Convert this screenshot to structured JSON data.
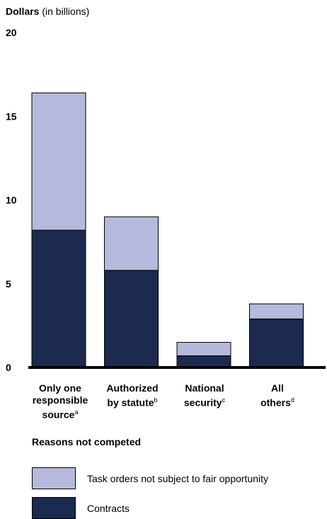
{
  "chart_data": {
    "type": "bar",
    "stacked": true,
    "ylabel_bold": "Dollars",
    "ylabel_rest": " (in billions)",
    "xlabel": "Reasons not competed",
    "ylim": [
      0,
      20
    ],
    "yticks": [
      0,
      5,
      10,
      15,
      20
    ],
    "categories": [
      {
        "line1": "Only one",
        "line2": "responsible",
        "line3": "source",
        "sup": "a"
      },
      {
        "line1": "Authorized",
        "line2": "by statute",
        "line3": "",
        "sup": "b"
      },
      {
        "line1": "National",
        "line2": "security",
        "line3": "",
        "sup": "c"
      },
      {
        "line1": "All",
        "line2": "others",
        "line3": "",
        "sup": "d"
      }
    ],
    "series": [
      {
        "name": "Contracts",
        "color": "#1b2a4e",
        "values": [
          8.2,
          5.8,
          0.7,
          2.9
        ]
      },
      {
        "name": "Task orders not subject to fair opportunity",
        "color": "#b5b9dc",
        "values": [
          8.2,
          3.2,
          0.8,
          0.9
        ]
      }
    ],
    "legend": [
      {
        "label": "Task orders not subject to fair opportunity",
        "color": "#b5b9dc"
      },
      {
        "label": "Contracts",
        "color": "#1b2a4e"
      }
    ]
  }
}
